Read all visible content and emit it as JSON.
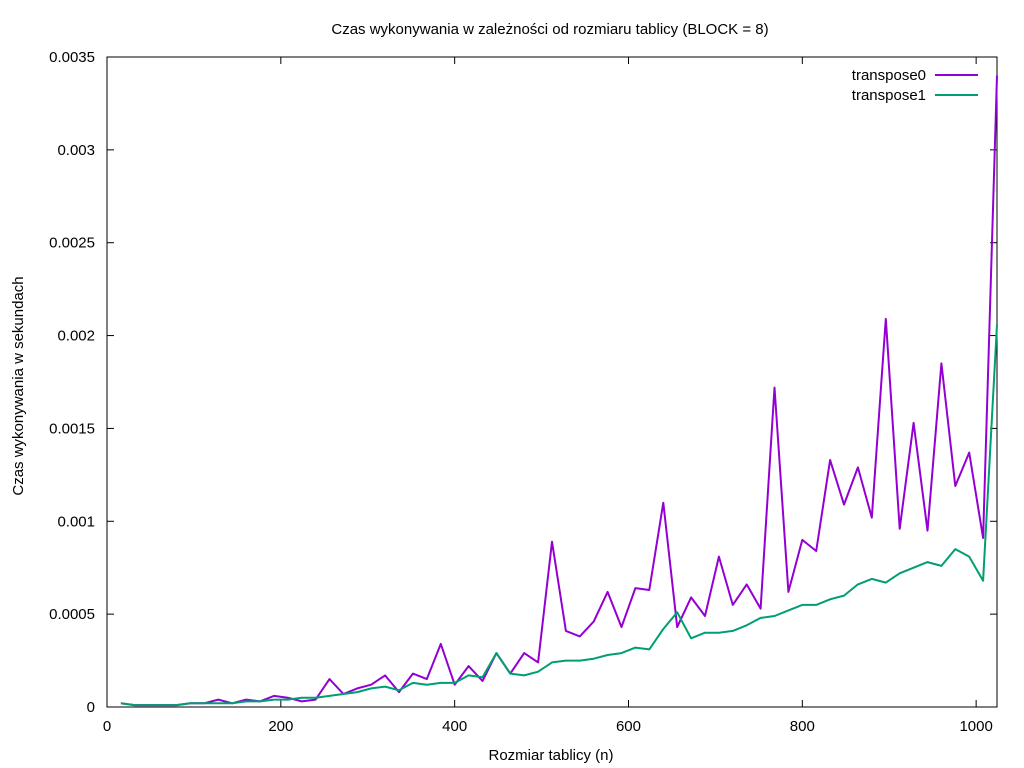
{
  "chart_data": {
    "type": "line",
    "title": "Czas wykonywania w zależności od rozmiaru tablicy (BLOCK = 8)",
    "xlabel": "Rozmiar tablicy (n)",
    "ylabel": "Czas wykonywania w sekundach",
    "xlim": [
      0,
      1024
    ],
    "ylim": [
      0,
      0.0035
    ],
    "x_ticks": [
      0,
      200,
      400,
      600,
      800,
      1000
    ],
    "y_ticks": [
      0,
      0.0005,
      0.001,
      0.0015,
      0.002,
      0.0025,
      0.003,
      0.0035
    ],
    "x_tick_labels": [
      "0",
      "200",
      "400",
      "600",
      "800",
      "1000"
    ],
    "y_tick_labels": [
      "0",
      "0.0005",
      "0.001",
      "0.0015",
      "0.002",
      "0.0025",
      "0.003",
      "0.0035"
    ],
    "grid": false,
    "legend_position": "top-right",
    "x": [
      16,
      32,
      48,
      64,
      80,
      96,
      112,
      128,
      144,
      160,
      176,
      192,
      208,
      224,
      240,
      256,
      272,
      288,
      304,
      320,
      336,
      352,
      368,
      384,
      400,
      416,
      432,
      448,
      464,
      480,
      496,
      512,
      528,
      544,
      560,
      576,
      592,
      608,
      624,
      640,
      656,
      672,
      688,
      704,
      720,
      736,
      752,
      768,
      784,
      800,
      816,
      832,
      848,
      864,
      880,
      896,
      912,
      928,
      944,
      960,
      976,
      992,
      1008,
      1024
    ],
    "series": [
      {
        "name": "transpose0",
        "color": "#9400d3",
        "values": [
          2e-05,
          1e-05,
          1e-05,
          1e-05,
          1e-05,
          2e-05,
          2e-05,
          4e-05,
          2e-05,
          4e-05,
          3e-05,
          6e-05,
          5e-05,
          3e-05,
          4e-05,
          0.00015,
          7e-05,
          0.0001,
          0.00012,
          0.00017,
          8e-05,
          0.00018,
          0.00015,
          0.00034,
          0.00012,
          0.00022,
          0.00014,
          0.00029,
          0.00018,
          0.00029,
          0.00024,
          0.00089,
          0.00041,
          0.00038,
          0.00046,
          0.00062,
          0.00043,
          0.00064,
          0.00063,
          0.0011,
          0.00043,
          0.00059,
          0.00049,
          0.00081,
          0.00055,
          0.00066,
          0.00053,
          0.00172,
          0.00062,
          0.0009,
          0.00084,
          0.00133,
          0.00109,
          0.00129,
          0.00102,
          0.00209,
          0.00096,
          0.00153,
          0.00095,
          0.00185,
          0.00119,
          0.00137,
          0.00091,
          0.0034
        ]
      },
      {
        "name": "transpose1",
        "color": "#009e73",
        "values": [
          2e-05,
          1e-05,
          1e-05,
          1e-05,
          1e-05,
          2e-05,
          2e-05,
          2e-05,
          2e-05,
          3e-05,
          3e-05,
          4e-05,
          4e-05,
          5e-05,
          5e-05,
          6e-05,
          7e-05,
          8e-05,
          0.0001,
          0.00011,
          9e-05,
          0.00013,
          0.00012,
          0.00013,
          0.00013,
          0.00017,
          0.00016,
          0.00029,
          0.00018,
          0.00017,
          0.00019,
          0.00024,
          0.00025,
          0.00025,
          0.00026,
          0.00028,
          0.00029,
          0.00032,
          0.00031,
          0.00042,
          0.00051,
          0.00037,
          0.0004,
          0.0004,
          0.00041,
          0.00044,
          0.00048,
          0.00049,
          0.00052,
          0.00055,
          0.00055,
          0.00058,
          0.0006,
          0.00066,
          0.00069,
          0.00067,
          0.00072,
          0.00075,
          0.00078,
          0.00076,
          0.00085,
          0.00081,
          0.00068,
          0.00206
        ]
      }
    ]
  }
}
